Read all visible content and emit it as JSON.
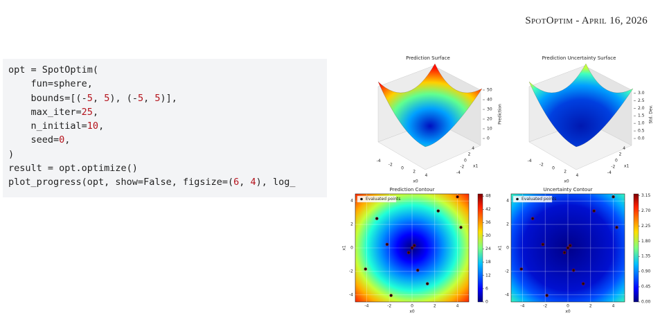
{
  "header": {
    "text": "SpotOptim - April 16, 2026"
  },
  "code": {
    "lines": [
      "opt = SpotOptim(",
      "    fun=sphere,",
      "    bounds=[(-5, 5), (-5, 5)],",
      "    max_iter=25,",
      "    n_initial=10,",
      "    seed=0,",
      ")",
      "result = opt.optimize()",
      "plot_progress(opt, show=False, figsize=(6, 4), log_"
    ]
  },
  "figure": {
    "panels": [
      {
        "type": "surface",
        "title": "Prediction Surface",
        "xlabel": "x0",
        "ylabel": "x1",
        "zlabel": "Prediction",
        "xlim": [
          -5,
          5
        ],
        "ylim": [
          -5,
          5
        ],
        "zlim": [
          0,
          50
        ],
        "xticks": [
          -4,
          -2,
          0,
          2,
          4
        ],
        "yticks": [
          -4,
          -2,
          0,
          2,
          4
        ],
        "zticks": [
          0,
          10,
          20,
          30,
          40,
          50
        ]
      },
      {
        "type": "surface",
        "title": "Prediction Uncertainty Surface",
        "xlabel": "x0",
        "ylabel": "x1",
        "zlabel": "Std. Dev.",
        "xlim": [
          -5,
          5
        ],
        "ylim": [
          -5,
          5
        ],
        "zlim": [
          0,
          3.2
        ],
        "xticks": [
          -4,
          -2,
          0,
          2,
          4
        ],
        "yticks": [
          -4,
          -2,
          0,
          2,
          4
        ],
        "zticks": [
          {
            "value": 0,
            "label": "0.0"
          },
          0.5,
          {
            "value": 1,
            "label": "1.0"
          },
          1.5,
          {
            "value": 2,
            "label": "2.0"
          },
          2.5,
          {
            "value": 3,
            "label": "3.0"
          }
        ]
      },
      {
        "type": "contour",
        "title": "Prediction Contour",
        "xlabel": "x0",
        "ylabel": "x1",
        "xlim": [
          -5,
          5
        ],
        "ylim": [
          -4.6,
          4.6
        ],
        "xticks": [
          -4,
          -2,
          0,
          2,
          4
        ],
        "yticks": [
          -4,
          -2,
          0,
          2,
          4
        ],
        "legend": "upper left",
        "points": {
          "name": "Evaluated points",
          "x": [
            -3.1,
            -2.2,
            -4.1,
            -1.85,
            -0.3,
            0,
            0.2,
            0.5,
            1.35,
            2.3,
            4.0,
            4.3
          ],
          "y": [
            2.5,
            0.3,
            -1.8,
            -4.05,
            -0.4,
            0,
            0.2,
            -1.9,
            -3.05,
            3.15,
            4.35,
            1.75
          ]
        },
        "colorbar": {
          "lim": [
            0,
            49
          ],
          "ticks": [
            0,
            6,
            12,
            18,
            24,
            30,
            36,
            42,
            48
          ]
        }
      },
      {
        "type": "contour",
        "title": "Uncertainty Contour",
        "xlabel": "x0",
        "ylabel": "x1",
        "xlim": [
          -5,
          5
        ],
        "ylim": [
          -4.6,
          4.6
        ],
        "xticks": [
          -4,
          -2,
          0,
          2,
          4
        ],
        "yticks": [
          -4,
          -2,
          0,
          2,
          4
        ],
        "legend": "upper left",
        "points": {
          "name": "Evaluated points",
          "x": [
            -3.1,
            -2.2,
            -4.1,
            -1.85,
            -0.3,
            0,
            0.2,
            0.5,
            1.35,
            2.3,
            4.0,
            4.3
          ],
          "y": [
            2.5,
            0.3,
            -1.8,
            -4.05,
            -0.4,
            0,
            0.2,
            -1.9,
            -3.05,
            3.15,
            4.35,
            1.75
          ]
        },
        "colorbar": {
          "lim": [
            0,
            3.2
          ],
          "ticks": [
            {
              "value": 0,
              "label": "0.00"
            },
            0.45,
            {
              "value": 0.9,
              "label": "0.90"
            },
            1.35,
            {
              "value": 1.8,
              "label": "1.80"
            },
            2.25,
            {
              "value": 2.7,
              "label": "2.70"
            },
            3.15
          ]
        }
      }
    ]
  }
}
